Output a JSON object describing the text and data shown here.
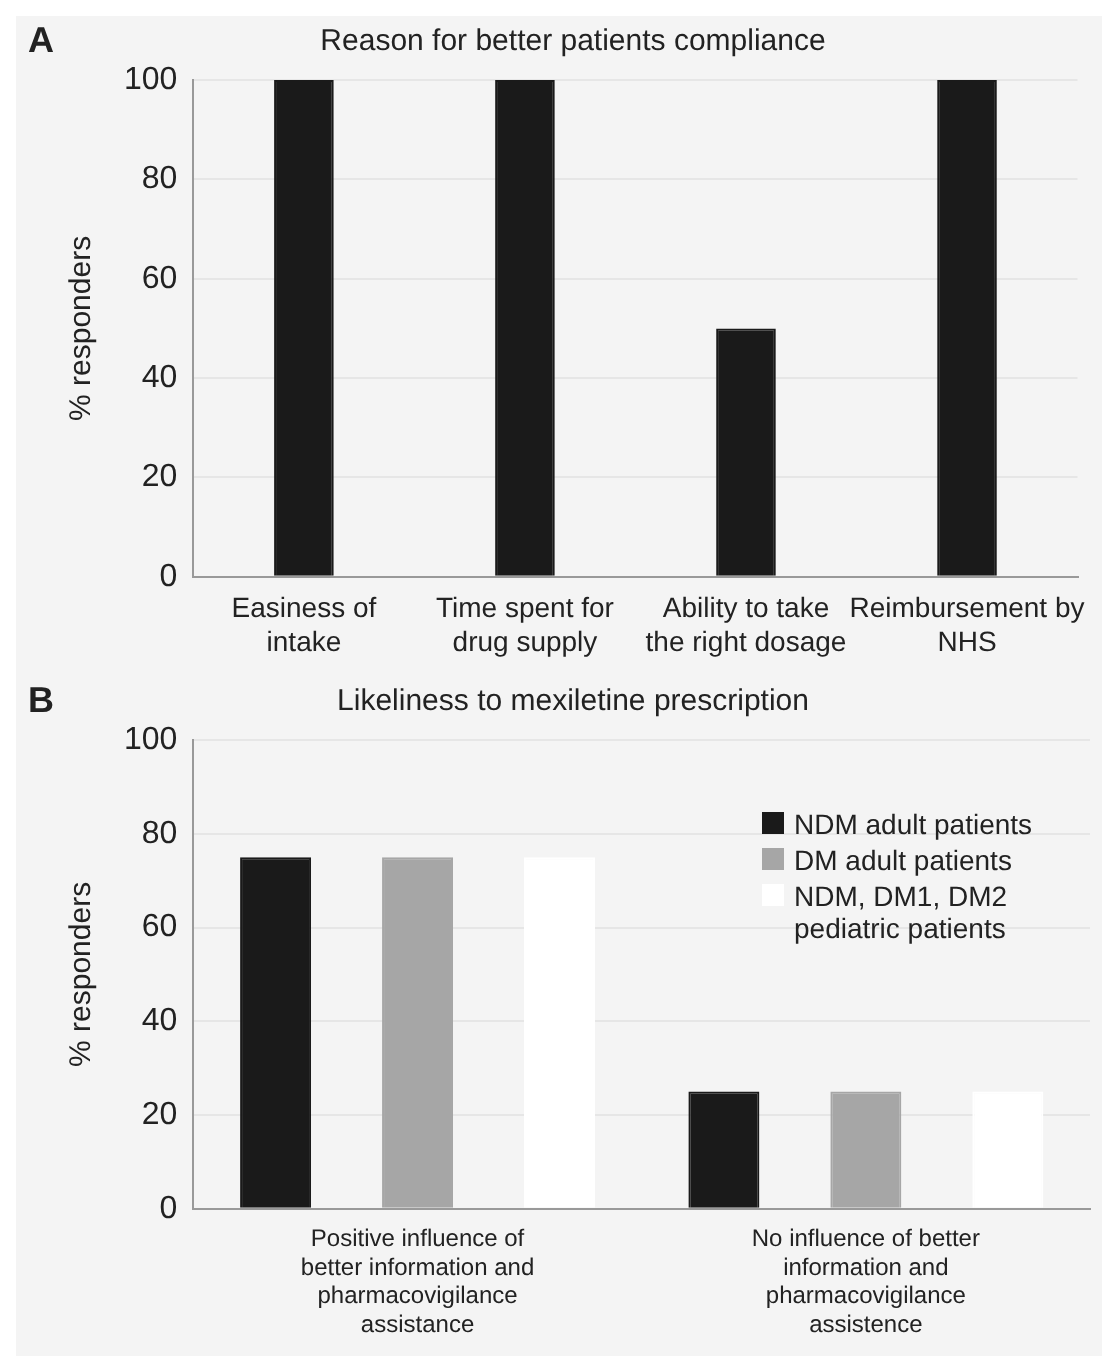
{
  "chart_data": [
    {
      "type": "bar",
      "title": "Reason for better patients compliance",
      "annotations": [
        "A"
      ],
      "ylabel": "% responders",
      "categories": [
        "Easiness of intake",
        "Time spent for drug supply",
        "Ability to take the right dosage",
        "Reimbursement by NHS"
      ],
      "values": [
        100,
        100,
        50,
        100
      ],
      "color": "#1a1a1a",
      "ylim": [
        0,
        100
      ],
      "yticks": [
        0,
        20,
        40,
        60,
        80,
        100
      ],
      "grid": "y"
    },
    {
      "type": "bar",
      "title": "Likeliness to mexiletine prescription",
      "annotations": [
        "B"
      ],
      "ylabel": "% responders",
      "categories": [
        "Positive influence of better information and pharmacovigilance assistance",
        "No influence of better information and pharmacovigilance assistence"
      ],
      "series": [
        {
          "name": "NDM adult patients",
          "color": "#1a1a1a",
          "values": [
            75,
            25
          ]
        },
        {
          "name": "DM adult patients",
          "color": "#a6a6a6",
          "values": [
            75,
            25
          ]
        },
        {
          "name": "NDM, DM1, DM2 pediatric patients",
          "color": "#ffffff",
          "values": [
            75,
            25
          ]
        }
      ],
      "ylim": [
        0,
        100
      ],
      "yticks": [
        0,
        20,
        40,
        60,
        80,
        100
      ],
      "grid": "y",
      "legend": "top right"
    }
  ]
}
